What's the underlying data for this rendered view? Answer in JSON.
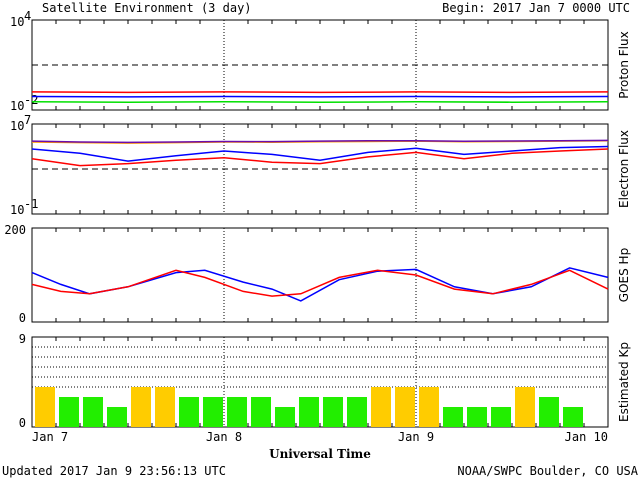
{
  "header": {
    "title": "Satellite Environment (3 day)",
    "begin": "Begin:  2017 Jan 7 0000 UTC"
  },
  "footer": {
    "updated": "Updated 2017 Jan  9 23:56:13 UTC",
    "credit": "NOAA/SWPC Boulder, CO USA"
  },
  "x_axis": {
    "label": "Universal Time",
    "ticks": [
      "Jan 7",
      "Jan 8",
      "Jan 9",
      "Jan 10"
    ]
  },
  "chart_data": [
    {
      "type": "line",
      "panel": "proton",
      "ylabel": "Proton Flux",
      "yscale": "log",
      "ylim": [
        0.01,
        10000
      ],
      "ytick_labels": [
        {
          "base": "10",
          "exp": "4"
        },
        {
          "base": "10",
          "exp": "-2"
        }
      ],
      "threshold": 10,
      "x": [
        0,
        0.5,
        1,
        1.5,
        2,
        2.5,
        3
      ],
      "series": [
        {
          "color": "#ff0000",
          "values": [
            0.16,
            0.15,
            0.16,
            0.15,
            0.16,
            0.15,
            0.16
          ]
        },
        {
          "color": "#0000ff",
          "values": [
            0.08,
            0.075,
            0.08,
            0.075,
            0.08,
            0.075,
            0.08
          ]
        },
        {
          "color": "#00e000",
          "values": [
            0.035,
            0.033,
            0.035,
            0.033,
            0.035,
            0.033,
            0.035
          ]
        }
      ]
    },
    {
      "type": "line",
      "panel": "electron",
      "ylabel": "Electron Flux",
      "yscale": "log",
      "ylim": [
        0.1,
        10000000
      ],
      "ytick_labels": [
        {
          "base": "10",
          "exp": "7"
        },
        {
          "base": "10",
          "exp": "-1"
        }
      ],
      "threshold": 1000,
      "x": [
        0,
        0.25,
        0.5,
        0.75,
        1,
        1.25,
        1.5,
        1.75,
        2,
        2.25,
        2.5,
        2.75,
        3
      ],
      "series": [
        {
          "color": "#ff9900",
          "values": [
            250000,
            220000,
            200000,
            220000,
            250000,
            240000,
            260000,
            280000,
            300000,
            260000,
            280000,
            300000,
            320000
          ]
        },
        {
          "color": "#6a0dad",
          "values": [
            300000,
            250000,
            230000,
            250000,
            280000,
            270000,
            300000,
            320000,
            330000,
            290000,
            310000,
            330000,
            350000
          ]
        },
        {
          "color": "#0000ff",
          "values": [
            60000,
            25000,
            5000,
            15000,
            40000,
            20000,
            6000,
            30000,
            70000,
            20000,
            40000,
            80000,
            100000
          ]
        },
        {
          "color": "#ff0000",
          "values": [
            8000,
            2000,
            3000,
            6000,
            10000,
            4000,
            3000,
            12000,
            30000,
            8000,
            25000,
            40000,
            60000
          ]
        }
      ]
    },
    {
      "type": "line",
      "panel": "goes_hp",
      "ylabel": "GOES Hp",
      "ylim": [
        0,
        200
      ],
      "ytick_labels": [
        "200",
        "0"
      ],
      "x": [
        0,
        0.15,
        0.3,
        0.5,
        0.75,
        0.9,
        1.1,
        1.25,
        1.4,
        1.6,
        1.8,
        2.0,
        2.2,
        2.4,
        2.6,
        2.8,
        3.0
      ],
      "series": [
        {
          "color": "#0000ff",
          "values": [
            105,
            80,
            60,
            75,
            105,
            110,
            85,
            70,
            45,
            90,
            108,
            112,
            75,
            60,
            75,
            115,
            95
          ]
        },
        {
          "color": "#ff0000",
          "values": [
            80,
            65,
            60,
            75,
            110,
            95,
            65,
            55,
            60,
            95,
            110,
            100,
            70,
            60,
            80,
            110,
            70
          ]
        }
      ]
    },
    {
      "type": "bar",
      "panel": "kp",
      "ylabel": "Estimated Kp",
      "ylim": [
        0,
        9
      ],
      "ytick_labels": [
        "9",
        "0"
      ],
      "gridlines": [
        4,
        5,
        6,
        7,
        8,
        9
      ],
      "bar_width_hours": 3,
      "values": [
        4,
        3,
        3,
        2,
        4,
        4,
        3,
        3,
        3,
        3,
        2,
        3,
        3,
        3,
        4,
        4,
        4,
        2,
        2,
        2,
        4,
        3,
        2
      ],
      "color_rule": {
        "below_4": "#22ee00",
        "at_4": "#ffcc00"
      }
    }
  ]
}
